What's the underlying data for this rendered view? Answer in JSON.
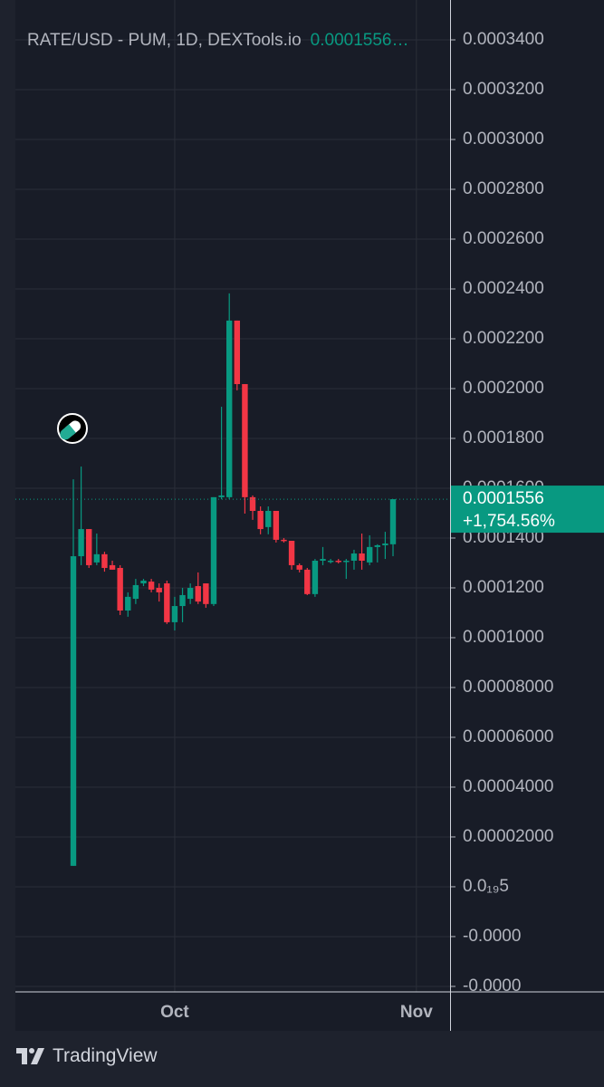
{
  "chart_data": {
    "type": "candlestick",
    "title": "RATE/USD - PUM, 1D, DEXTools.io",
    "last_price": 0.0001556,
    "change_label": "+1,754.56%",
    "brand": "TradingView",
    "up_color": "#089981",
    "down_color": "#f23645",
    "grid": true,
    "categories": [
      null,
      null,
      null,
      null,
      null,
      null,
      null,
      null,
      null,
      null,
      null,
      null,
      null,
      "Oct",
      null,
      null,
      null,
      null,
      null,
      null,
      null,
      null,
      null,
      null,
      null,
      null,
      null,
      null,
      null,
      null,
      null,
      null,
      null,
      null,
      null,
      null,
      null,
      null,
      null,
      null,
      null,
      null,
      null,
      null,
      "Nov"
    ],
    "open": [
      8.4e-06,
      0.0001327,
      0.0001436,
      0.0001302,
      0.0001335,
      0.0001291,
      0.000128,
      0.0001109,
      0.0001156,
      0.0001218,
      0.0001225,
      0.00012,
      0.0001218,
      0.0001062,
      0.0001127,
      0.0001156,
      0.0001207,
      0.0001218,
      0.0001135,
      0.0001564,
      0.0001564,
      0.0002273,
      0.0002018,
      0.0001564,
      0.0001509,
      0.0001444,
      0.0001509,
      0.0001393,
      0.0001389,
      0.0001291,
      0.0001273,
      0.0001175,
      0.0001309,
      0.0001305,
      0.0001309,
      0.0001305,
      0.0001309,
      0.0001338,
      0.0001302,
      0.0001364,
      0.0001371,
      0.0001375,
      null,
      null,
      null
    ],
    "high": [
      0.0001636,
      0.0001687,
      0.0001436,
      0.0001418,
      0.0001345,
      0.0001309,
      0.0001291,
      0.0001182,
      0.0001236,
      0.0001236,
      0.0001236,
      0.0001218,
      0.0001229,
      0.0001164,
      0.00012,
      0.0001218,
      0.0001262,
      0.0001218,
      0.0001564,
      0.0001927,
      0.0002382,
      0.0002273,
      0.0002018,
      0.0001571,
      0.0001527,
      0.0001527,
      0.0001509,
      0.00014,
      0.0001389,
      0.0001298,
      0.000128,
      0.0001316,
      0.0001364,
      0.0001316,
      0.0001316,
      0.0001316,
      0.0001353,
      0.0001418,
      0.0001411,
      0.0001375,
      0.0001425,
      0.0001556,
      null,
      null,
      null
    ],
    "low": [
      8.4e-06,
      0.0001291,
      0.000128,
      0.0001291,
      0.0001265,
      0.0001273,
      0.0001091,
      0.0001084,
      0.0001135,
      0.0001207,
      0.0001182,
      0.0001145,
      0.0001055,
      0.0001029,
      0.0001062,
      0.0001135,
      0.0001135,
      0.000112,
      0.0001127,
      0.0001556,
      0.0001556,
      0.0001993,
      0.0001498,
      0.0001473,
      0.0001415,
      0.0001415,
      0.0001382,
      0.0001382,
      0.0001273,
      0.0001262,
      0.0001171,
      0.0001164,
      0.0001291,
      0.0001298,
      0.0001298,
      0.0001236,
      0.0001273,
      0.0001273,
      0.0001291,
      0.0001302,
      0.0001316,
      0.0001327,
      null,
      null,
      null
    ],
    "close": [
      0.0001327,
      0.0001436,
      0.0001291,
      0.0001335,
      0.000128,
      0.0001273,
      0.0001109,
      0.0001164,
      0.0001211,
      0.0001229,
      0.0001193,
      0.0001182,
      0.0001062,
      0.0001127,
      0.0001171,
      0.00012,
      0.0001145,
      0.0001135,
      0.0001564,
      0.0001571,
      0.0002273,
      0.0002018,
      0.0001564,
      0.0001509,
      0.0001436,
      0.0001509,
      0.0001393,
      0.0001389,
      0.0001291,
      0.0001273,
      0.0001175,
      0.0001309,
      0.0001316,
      0.0001309,
      0.0001305,
      0.0001309,
      0.0001338,
      0.0001309,
      0.0001364,
      0.0001371,
      0.0001378,
      0.0001556,
      null,
      null,
      null
    ],
    "ylim": [
      -4.22e-05,
      0.000356
    ],
    "yticks": [
      {
        "value": 0.00034,
        "label": "0.0003400"
      },
      {
        "value": 0.00032,
        "label": "0.0003200"
      },
      {
        "value": 0.0003,
        "label": "0.0003000"
      },
      {
        "value": 0.00028,
        "label": "0.0002800"
      },
      {
        "value": 0.00026,
        "label": "0.0002600"
      },
      {
        "value": 0.00024,
        "label": "0.0002400"
      },
      {
        "value": 0.00022,
        "label": "0.0002200"
      },
      {
        "value": 0.0002,
        "label": "0.0002000"
      },
      {
        "value": 0.00018,
        "label": "0.0001800"
      },
      {
        "value": 0.00016,
        "label": "0.0001600"
      },
      {
        "value": 0.00014,
        "label": "0.0001400"
      },
      {
        "value": 0.00012,
        "label": "0.0001200"
      },
      {
        "value": 0.0001,
        "label": "0.0001000"
      },
      {
        "value": 8e-05,
        "label": "0.00008000"
      },
      {
        "value": 6e-05,
        "label": "0.00006000"
      },
      {
        "value": 4e-05,
        "label": "0.00004000"
      },
      {
        "value": 2e-05,
        "label": "0.00002000"
      },
      {
        "value": 5e-20,
        "label": "0.0₁₉5"
      },
      {
        "value": -2e-05,
        "label": "-0.0000"
      },
      {
        "value": -4e-05,
        "label": "-0.0000"
      }
    ]
  }
}
